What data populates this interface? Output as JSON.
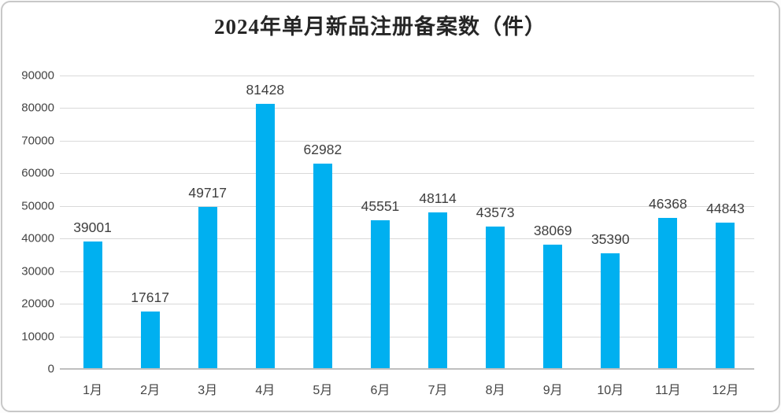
{
  "chart_data": {
    "type": "bar",
    "title": "2024年单月新品注册备案数（件）",
    "categories": [
      "1月",
      "2月",
      "3月",
      "4月",
      "5月",
      "6月",
      "7月",
      "8月",
      "9月",
      "10月",
      "11月",
      "12月"
    ],
    "values": [
      39001,
      17617,
      49717,
      81428,
      62982,
      45551,
      48114,
      43573,
      38069,
      35390,
      46368,
      44843
    ],
    "xlabel": "",
    "ylabel": "",
    "ylim": [
      0,
      90000
    ],
    "ytick_step": 10000,
    "ytick_labels": [
      "0",
      "10000",
      "20000",
      "30000",
      "40000",
      "50000",
      "60000",
      "70000",
      "80000",
      "90000"
    ],
    "grid": "horizontal",
    "legend": "none",
    "data_labels": true,
    "bar_color": "#00B0F0",
    "gridline_color": "#d9d9d9",
    "axis_line_color": "#bfbfbf",
    "tick_label_color": "#444444",
    "data_label_color": "#3f3f3f",
    "title_color": "#262626",
    "card_border_color": "#c8c8c8"
  }
}
